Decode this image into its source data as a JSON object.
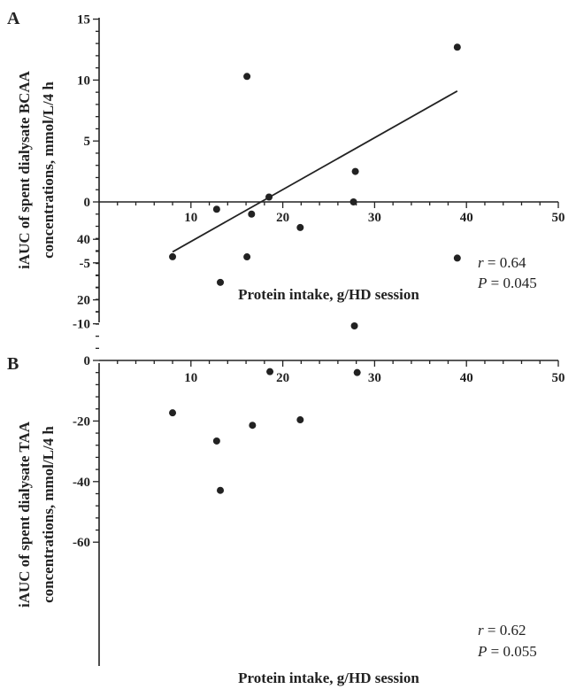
{
  "chart_data": [
    {
      "type": "scatter",
      "panel_label": "A",
      "xlabel": "Protein intake, g/HD session",
      "ylabel_line1": "iAUC of spent dialysate BCAA",
      "ylabel_line2": "concentrations, mmol/L/4 h",
      "xlim": [
        0,
        50
      ],
      "ylim": [
        -10,
        15
      ],
      "x_ticks": [
        10,
        20,
        30,
        40,
        50
      ],
      "y_ticks": [
        -10,
        -5,
        0,
        5,
        10,
        15
      ],
      "series": [
        {
          "points": [
            {
              "x": 8.0,
              "y": -4.5
            },
            {
              "x": 12.8,
              "y": -0.6
            },
            {
              "x": 13.2,
              "y": -6.6
            },
            {
              "x": 16.1,
              "y": 10.3
            },
            {
              "x": 16.6,
              "y": -1.0
            },
            {
              "x": 18.5,
              "y": 0.4
            },
            {
              "x": 21.9,
              "y": -2.1
            },
            {
              "x": 27.7,
              "y": 0.0
            },
            {
              "x": 27.9,
              "y": 2.5
            },
            {
              "x": 39.0,
              "y": 12.7
            }
          ]
        }
      ],
      "regression_line": {
        "x1": 8.0,
        "y1": -4.1,
        "x2": 39.0,
        "y2": 9.1
      },
      "r_label": "r",
      "r_value": " = 0.64",
      "p_label": "P",
      "p_value": " = 0.045"
    },
    {
      "type": "scatter",
      "panel_label": "B",
      "xlabel": "Protein intake, g/HD session",
      "ylabel_line1": "iAUC of spent dialysate TAA",
      "ylabel_line2": "concentrations, mmol/L/4 h",
      "xlim": [
        0,
        50
      ],
      "ylim": [
        -60,
        40
      ],
      "x_ticks": [
        10,
        20,
        30,
        40,
        50
      ],
      "y_ticks": [
        -60,
        -40,
        -20,
        0,
        20,
        40
      ],
      "series": [
        {
          "points": [
            {
              "x": 8.0,
              "y": -17.3
            },
            {
              "x": 12.8,
              "y": -26.6
            },
            {
              "x": 13.2,
              "y": -42.9
            },
            {
              "x": 16.1,
              "y": 34.2
            },
            {
              "x": 16.7,
              "y": -21.4
            },
            {
              "x": 18.6,
              "y": -3.7
            },
            {
              "x": 21.9,
              "y": -19.6
            },
            {
              "x": 27.8,
              "y": 11.4
            },
            {
              "x": 28.1,
              "y": -4.0
            },
            {
              "x": 39.0,
              "y": 33.8
            }
          ]
        }
      ],
      "r_label": "r",
      "r_value": " = 0.62",
      "p_label": "P",
      "p_value": " = 0.055"
    }
  ]
}
